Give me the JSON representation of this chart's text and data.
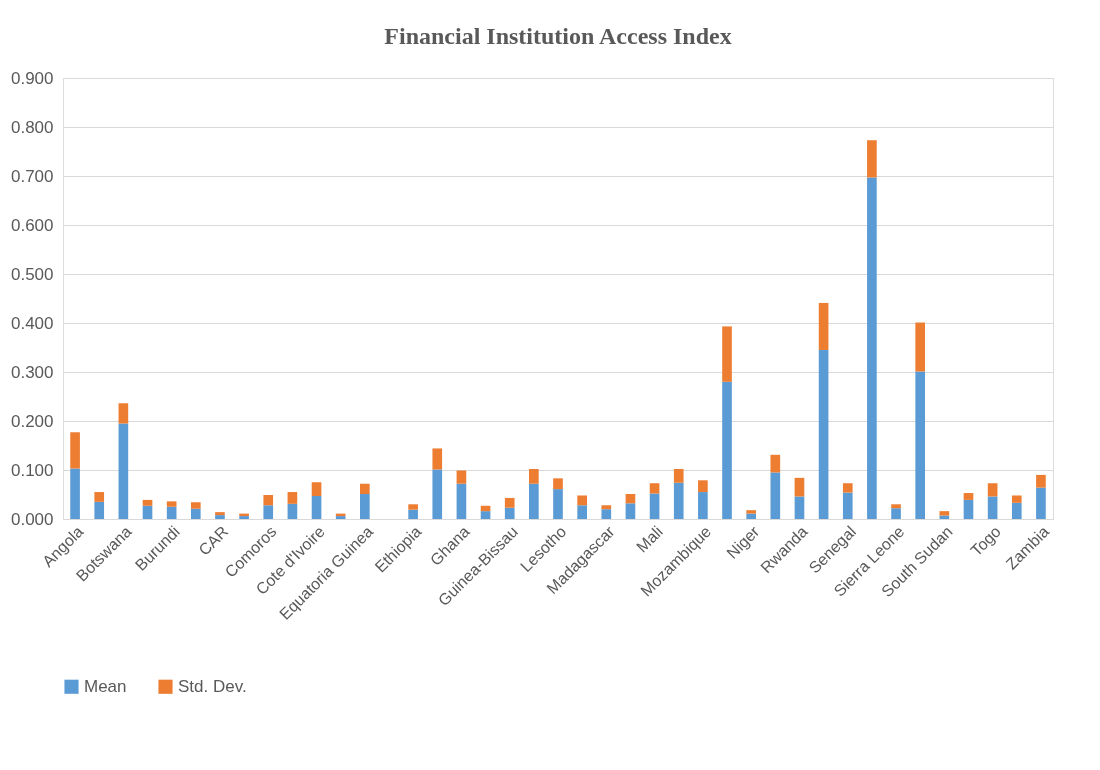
{
  "chart_data": {
    "type": "bar",
    "title": "Financial Institution Access Index",
    "stacked": true,
    "categories": [
      "Angola",
      null,
      "Botswana",
      null,
      "Burundi",
      null,
      "CAR",
      null,
      "Comoros",
      null,
      "Cote d'Ivoire",
      null,
      "Equatoria Guinea",
      null,
      "Ethiopia",
      null,
      "Ghana",
      null,
      "Guinea-Bissau",
      null,
      "Lesotho",
      null,
      "Madagascar",
      null,
      "Mali",
      null,
      "Mozambique",
      null,
      "Niger",
      null,
      "Rwanda",
      null,
      "Senegal",
      null,
      "Sierra Leone",
      null,
      "South Sudan",
      null,
      "Togo",
      null,
      "Zambia"
    ],
    "series": [
      {
        "name": "Mean",
        "color": "#5b9bd5",
        "values": [
          0.103,
          0.035,
          0.195,
          0.027,
          0.025,
          0.021,
          0.008,
          0.006,
          0.028,
          0.031,
          0.047,
          0.006,
          0.051,
          null,
          0.019,
          0.101,
          0.072,
          0.016,
          0.023,
          0.072,
          0.061,
          0.028,
          0.02,
          0.032,
          0.052,
          0.074,
          0.055,
          0.28,
          0.011,
          0.095,
          0.046,
          0.345,
          0.054,
          0.697,
          0.022,
          0.301,
          0.007,
          0.039,
          0.046,
          0.033,
          0.064
        ]
      },
      {
        "name": "Std. Dev.",
        "color": "#ed7d31",
        "values": [
          0.074,
          0.02,
          0.041,
          0.012,
          0.011,
          0.013,
          0.006,
          0.005,
          0.021,
          0.024,
          0.028,
          0.005,
          0.021,
          null,
          0.011,
          0.043,
          0.027,
          0.011,
          0.02,
          0.03,
          0.022,
          0.02,
          0.008,
          0.019,
          0.021,
          0.028,
          0.024,
          0.113,
          0.007,
          0.036,
          0.038,
          0.096,
          0.019,
          0.076,
          0.008,
          0.1,
          0.009,
          0.014,
          0.027,
          0.015,
          0.026
        ]
      }
    ],
    "ylim": [
      0,
      0.9
    ],
    "yticks": [
      {
        "value": 0,
        "label": "0.000"
      },
      {
        "value": 0.1,
        "label": "0.100"
      },
      {
        "value": 0.2,
        "label": "0.200"
      },
      {
        "value": 0.3,
        "label": "0.300"
      },
      {
        "value": 0.4,
        "label": "0.400"
      },
      {
        "value": 0.5,
        "label": "0.500"
      },
      {
        "value": 0.6,
        "label": "0.600"
      },
      {
        "value": 0.7,
        "label": "0.700"
      },
      {
        "value": 0.8,
        "label": "0.800"
      },
      {
        "value": 0.9,
        "label": "0.900"
      }
    ],
    "grid": "y",
    "legend": "bottom"
  }
}
